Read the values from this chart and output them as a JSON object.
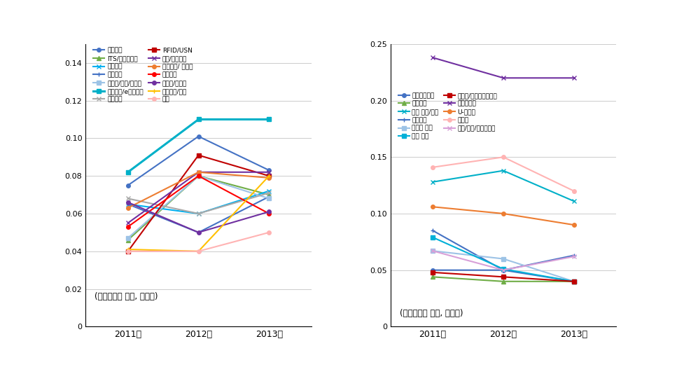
{
  "years": [
    2011,
    2012,
    2013
  ],
  "left_chart": {
    "title": "(기술파급도 증가, 가중치)",
    "ylim": [
      0,
      0.15
    ],
    "yticks": [
      0,
      0.02,
      0.04,
      0.06,
      0.08,
      0.1,
      0.12,
      0.14
    ],
    "series": [
      {
        "label": "이동통신",
        "color": "#4472C4",
        "marker": "o",
        "lw": 1.5,
        "values": [
          0.075,
          0.101,
          0.083
        ]
      },
      {
        "label": "ITS/텔레매틱스",
        "color": "#70AD47",
        "marker": "^",
        "lw": 1.5,
        "values": [
          0.046,
          0.08,
          0.07
        ]
      },
      {
        "label": "식품과학",
        "color": "#00B0F0",
        "marker": "x",
        "lw": 1.5,
        "values": [
          0.065,
          0.06,
          0.072
        ]
      },
      {
        "label": "감성과학",
        "color": "#4472C4",
        "marker": "+",
        "lw": 1.5,
        "values": [
          0.065,
          0.05,
          0.069
        ]
      },
      {
        "label": "도서관/정보/이용자",
        "color": "#9DC3E6",
        "marker": "s",
        "lw": 1.5,
        "values": [
          0.047,
          0.08,
          0.068
        ]
      },
      {
        "label": "경영정보/e비즈니스",
        "color": "#00B0C8",
        "marker": "s",
        "lw": 2.2,
        "values": [
          0.082,
          0.11,
          0.11
        ]
      },
      {
        "label": "기상과학",
        "color": "#A9A9A9",
        "marker": "x",
        "lw": 1.5,
        "values": [
          0.068,
          0.06,
          0.071
        ]
      },
      {
        "label": "RFID/USN",
        "color": "#C00000",
        "marker": "s",
        "lw": 1.5,
        "values": [
          0.04,
          0.091,
          0.08
        ]
      },
      {
        "label": "영상/음향기기",
        "color": "#7030A0",
        "marker": "x",
        "lw": 1.5,
        "values": [
          0.055,
          0.082,
          0.082
        ]
      },
      {
        "label": "의료정보/ 시스템",
        "color": "#ED7D31",
        "marker": "o",
        "lw": 1.5,
        "values": [
          0.063,
          0.082,
          0.079
        ]
      },
      {
        "label": "인지과학",
        "color": "#FF0000",
        "marker": "o",
        "lw": 1.5,
        "values": [
          0.053,
          0.08,
          0.06
        ]
      },
      {
        "label": "미디어/수용자",
        "color": "#7030A0",
        "marker": "o",
        "lw": 1.5,
        "values": [
          0.066,
          0.05,
          0.061
        ]
      },
      {
        "label": "경영전략/윤리",
        "color": "#FFC000",
        "marker": "+",
        "lw": 1.5,
        "values": [
          0.041,
          0.04,
          0.08
        ]
      },
      {
        "label": "관광",
        "color": "#FFB3B3",
        "marker": "o",
        "lw": 1.5,
        "values": [
          0.04,
          0.04,
          0.05
        ]
      }
    ]
  },
  "right_chart": {
    "title": "(기술파급도 감소, 가중치)",
    "ylim": [
      0,
      0.25
    ],
    "yticks": [
      0,
      0.05,
      0.1,
      0.15,
      0.2,
      0.25
    ],
    "series": [
      {
        "label": "생산기반기술",
        "color": "#4472C4",
        "marker": "o",
        "lw": 1.5,
        "values": [
          0.05,
          0.05,
          0.04
        ]
      },
      {
        "label": "기타기계",
        "color": "#70AD47",
        "marker": "^",
        "lw": 1.5,
        "values": [
          0.044,
          0.04,
          0.04
        ]
      },
      {
        "label": "기타 정보/통신",
        "color": "#00B0C8",
        "marker": "x",
        "lw": 1.5,
        "values": [
          0.128,
          0.138,
          0.111
        ]
      },
      {
        "label": "정보이론",
        "color": "#4472C4",
        "marker": "+",
        "lw": 1.5,
        "values": [
          0.085,
          0.05,
          0.063
        ]
      },
      {
        "label": "디자인 일반",
        "color": "#9DC3E6",
        "marker": "s",
        "lw": 1.5,
        "values": [
          0.067,
          0.06,
          0.04
        ]
      },
      {
        "label": "기타 교육",
        "color": "#00B0D8",
        "marker": "s",
        "lw": 1.5,
        "values": [
          0.079,
          0.051,
          0.04
        ]
      },
      {
        "label": "에너지/환경기계시스템",
        "color": "#C00000",
        "marker": "s",
        "lw": 1.5,
        "values": [
          0.048,
          0.044,
          0.04
        ]
      },
      {
        "label": "소프트웨어",
        "color": "#7030A0",
        "marker": "x",
        "lw": 1.5,
        "values": [
          0.238,
          0.22,
          0.22
        ]
      },
      {
        "label": "U-컴퓨팅",
        "color": "#ED7D31",
        "marker": "o",
        "lw": 1.5,
        "values": [
          0.106,
          0.1,
          0.09
        ]
      },
      {
        "label": "콘텐츠",
        "color": "#FFB3B3",
        "marker": "o",
        "lw": 1.5,
        "values": [
          0.141,
          0.15,
          0.12
        ]
      },
      {
        "label": "산업/조직/소비자심리",
        "color": "#D8A0D8",
        "marker": "x",
        "lw": 1.5,
        "values": [
          0.067,
          0.05,
          0.062
        ]
      }
    ]
  }
}
